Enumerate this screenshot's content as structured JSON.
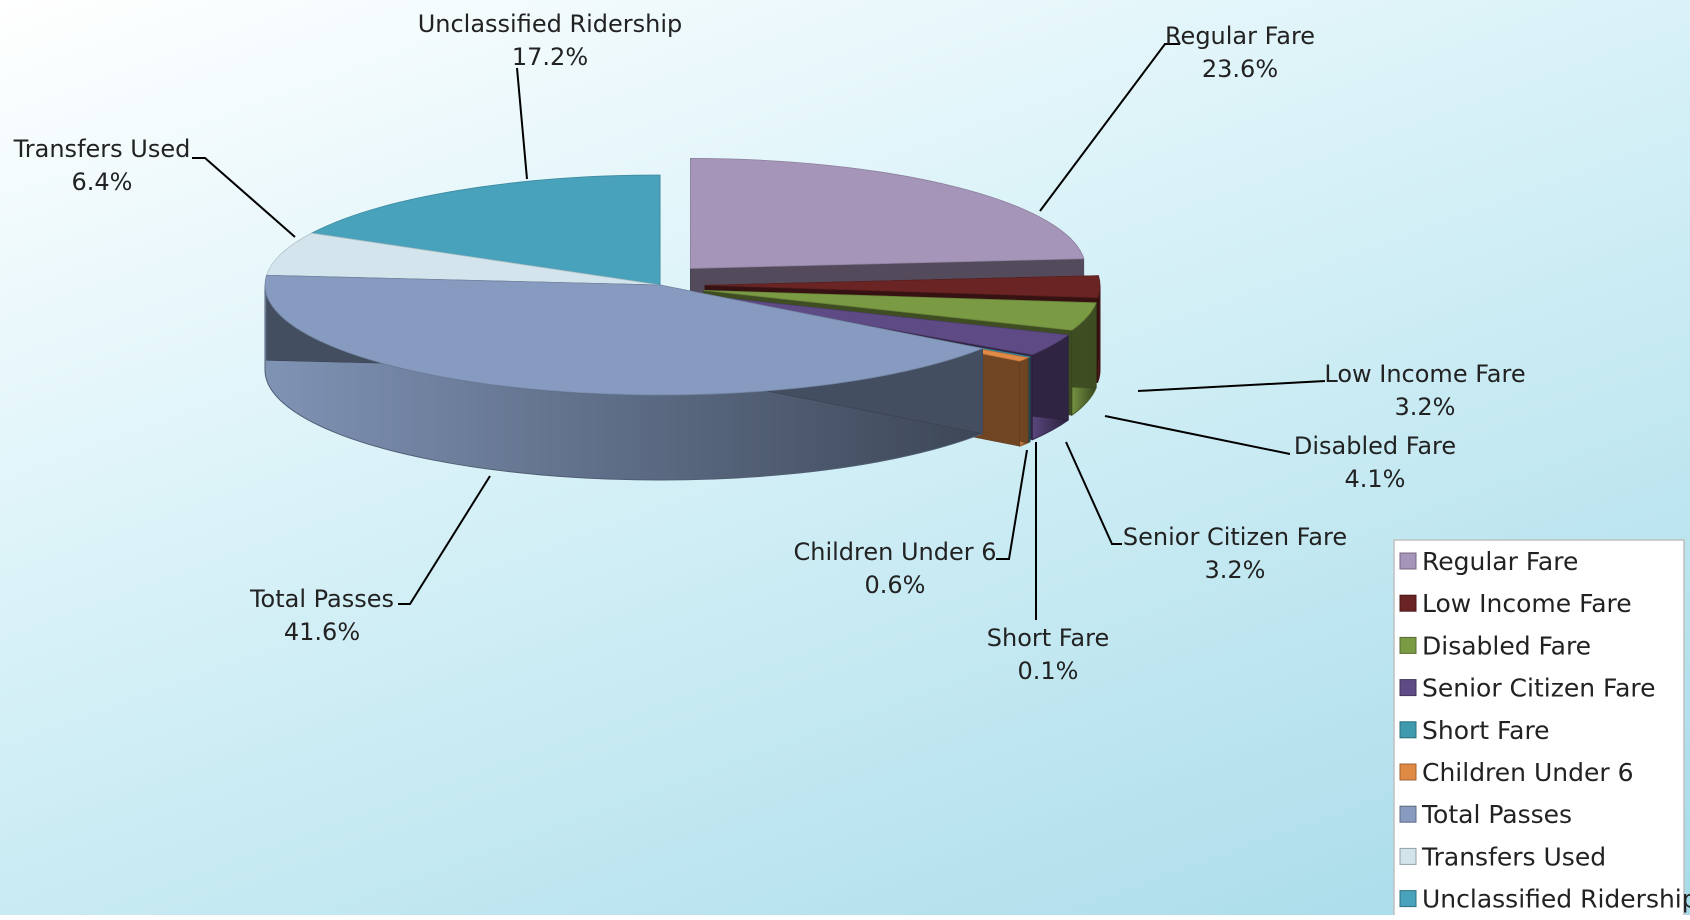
{
  "chart_data": {
    "type": "pie",
    "style": "3d-exploded",
    "title": "",
    "legend_position": "bottom-right",
    "slices": [
      {
        "label": "Regular Fare",
        "value": 23.6,
        "percent_label": "23.6%",
        "color": "#a595b8",
        "exploded": true
      },
      {
        "label": "Low Income Fare",
        "value": 3.2,
        "percent_label": "3.2%",
        "color": "#6b2424",
        "exploded": true
      },
      {
        "label": "Disabled Fare",
        "value": 4.1,
        "percent_label": "4.1%",
        "color": "#7b9a44",
        "exploded": true
      },
      {
        "label": "Senior Citizen Fare",
        "value": 3.2,
        "percent_label": "3.2%",
        "color": "#5e4a84",
        "exploded": true
      },
      {
        "label": "Short Fare",
        "value": 0.1,
        "percent_label": "0.1%",
        "color": "#3f9ab0",
        "exploded": true
      },
      {
        "label": "Children Under 6",
        "value": 0.6,
        "percent_label": "0.6%",
        "color": "#e08a45",
        "exploded": true
      },
      {
        "label": "Total Passes",
        "value": 41.6,
        "percent_label": "41.6%",
        "color": "#869bbf",
        "exploded": false
      },
      {
        "label": "Transfers Used",
        "value": 6.4,
        "percent_label": "6.4%",
        "color": "#d3e4ec",
        "exploded": false
      },
      {
        "label": "Unclassified Ridership",
        "value": 17.2,
        "percent_label": "17.2%",
        "color": "#48a2bb",
        "exploded": false
      }
    ]
  }
}
